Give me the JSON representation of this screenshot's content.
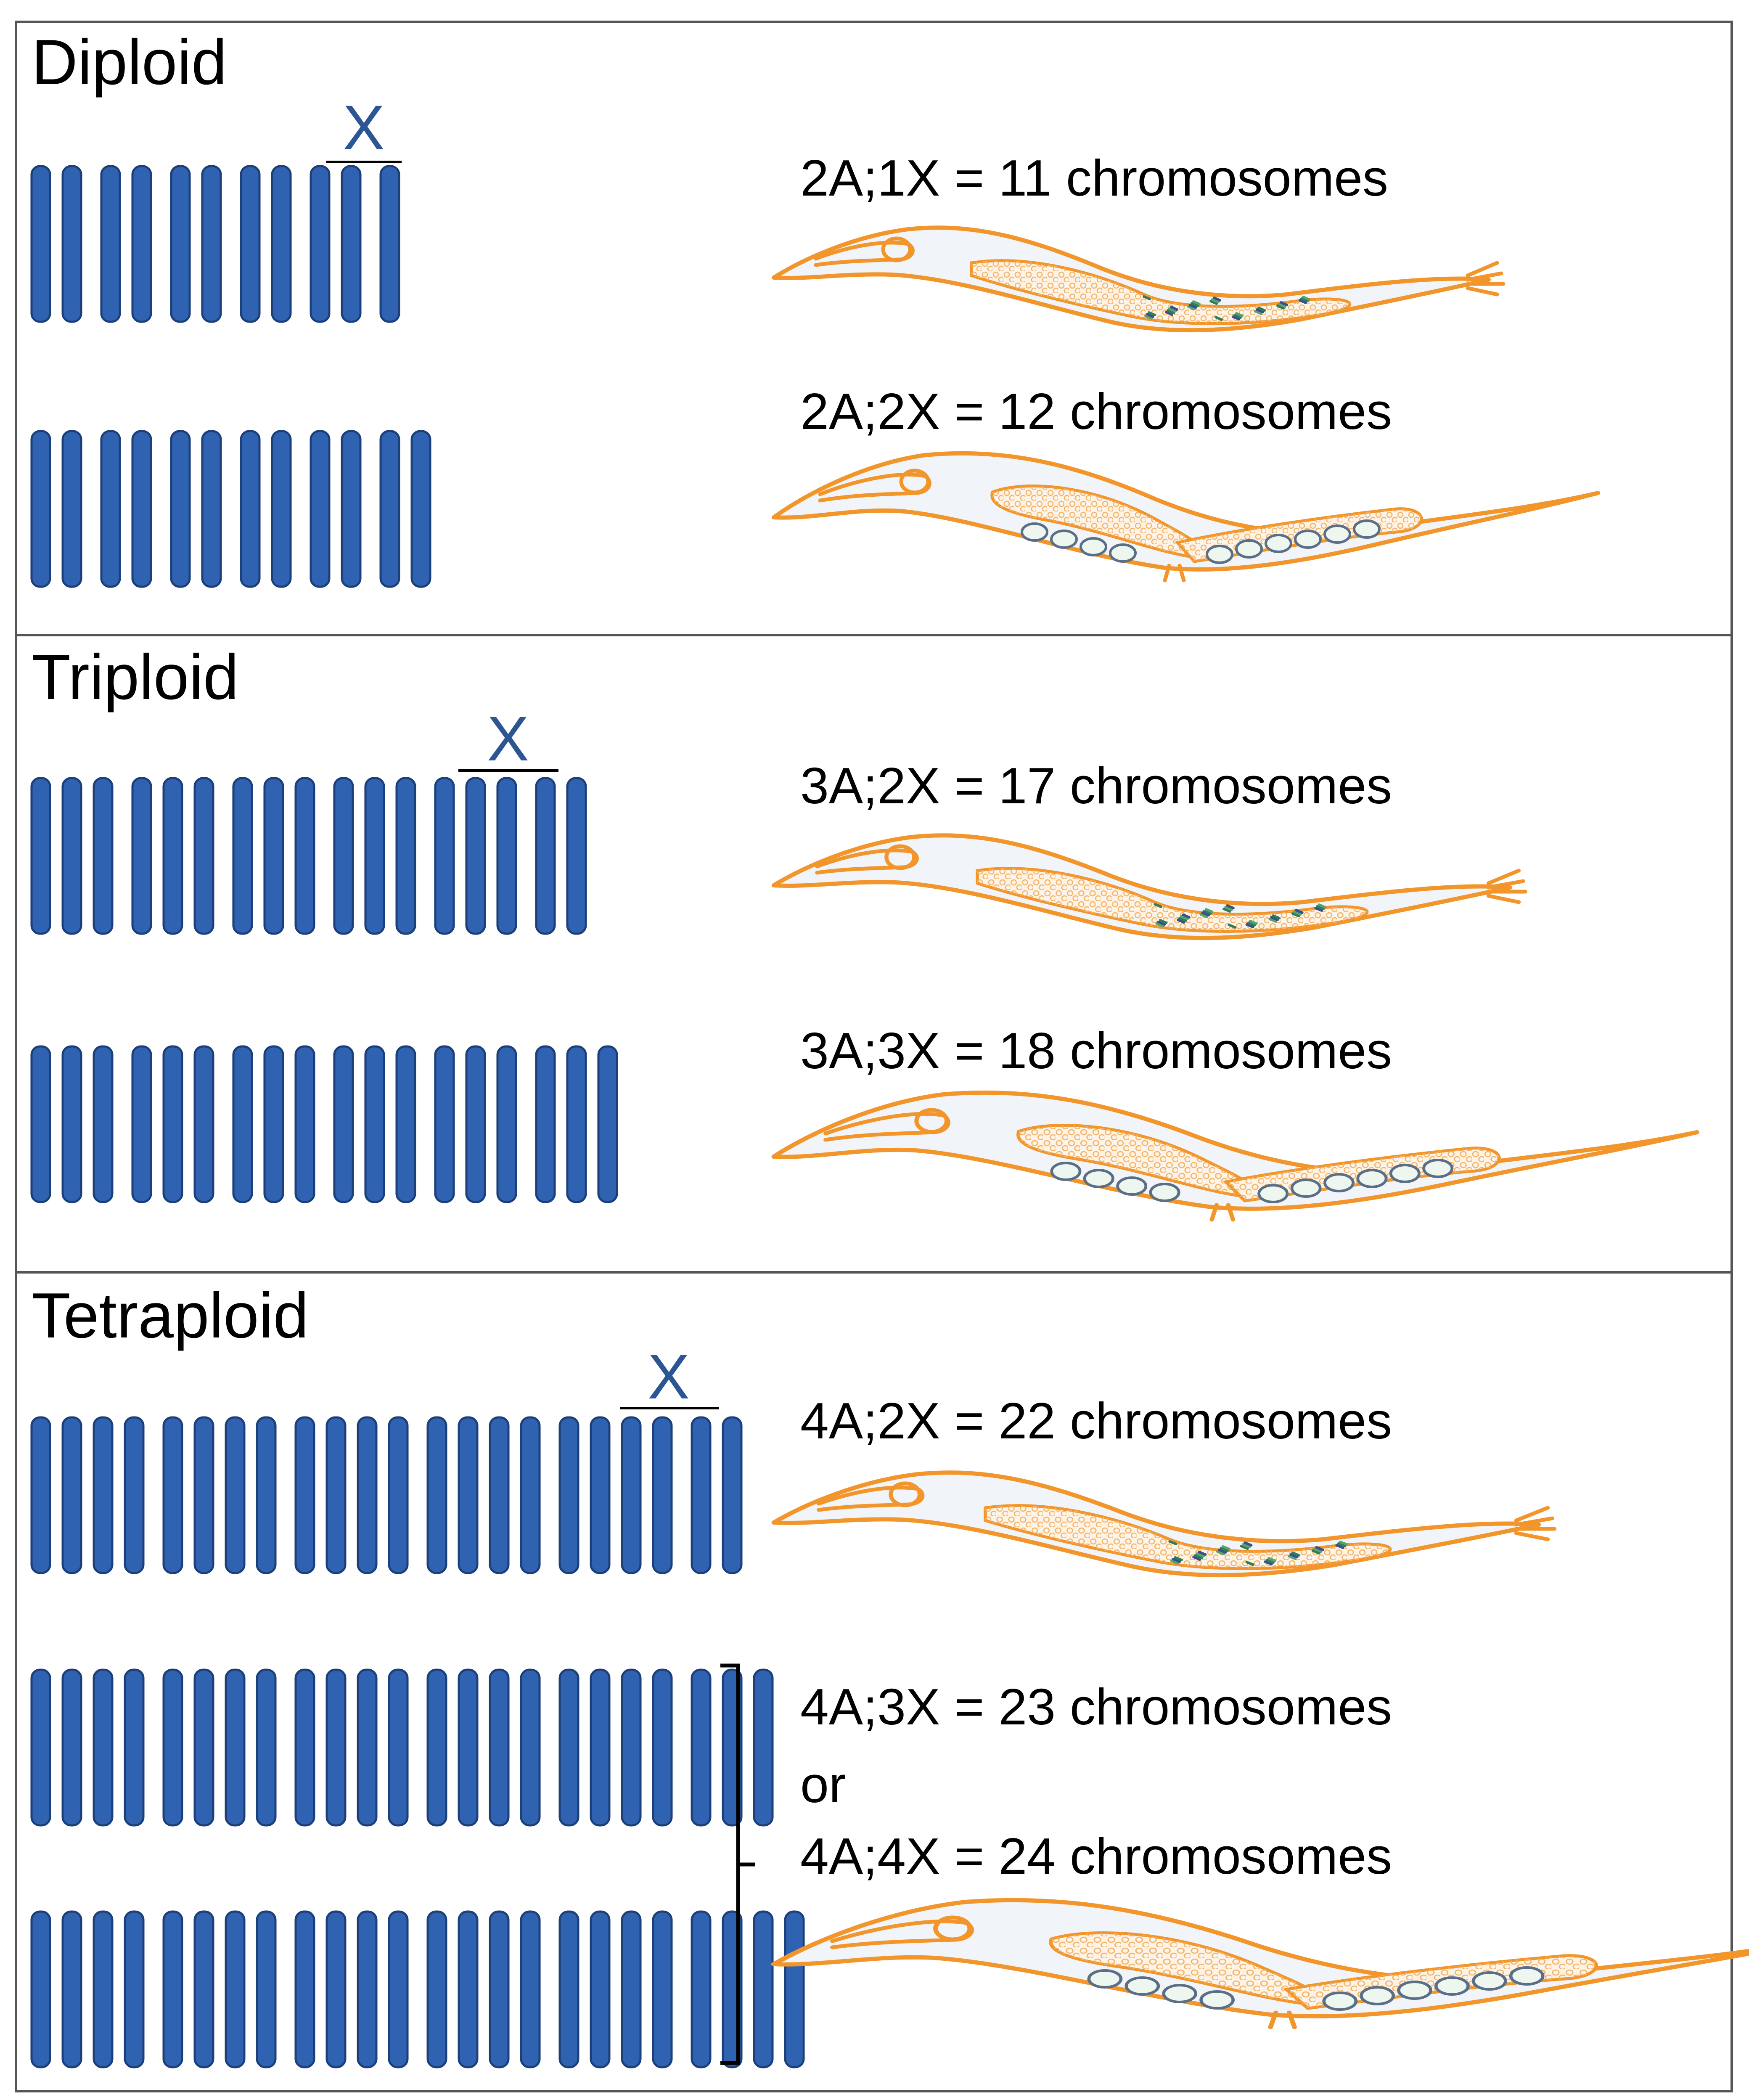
{
  "panels": [
    {
      "title": "Diploid",
      "x_label": "X",
      "rows": [
        {
          "caption": "2A;1X = 11 chromosomes",
          "worm": "male",
          "groups": [
            2,
            2,
            2,
            2,
            2,
            1
          ]
        },
        {
          "caption": "2A;2X = 12 chromosomes",
          "worm": "hermaphrodite",
          "groups": [
            2,
            2,
            2,
            2,
            2,
            2
          ]
        }
      ]
    },
    {
      "title": "Triploid",
      "x_label": "X",
      "rows": [
        {
          "caption": "3A;2X = 17 chromosomes",
          "worm": "male",
          "groups": [
            3,
            3,
            3,
            3,
            3,
            2
          ]
        },
        {
          "caption": "3A;3X = 18 chromosomes",
          "worm": "hermaphrodite",
          "groups": [
            3,
            3,
            3,
            3,
            3,
            3
          ]
        }
      ]
    },
    {
      "title": "Tetraploid",
      "x_label": "X",
      "rows": [
        {
          "caption": "4A;2X = 22 chromosomes",
          "worm": "male",
          "groups": [
            4,
            4,
            4,
            4,
            4,
            2
          ]
        },
        {
          "caption_lines": [
            "4A;3X = 23 chromosomes",
            "or",
            "4A;4X = 24 chromosomes"
          ],
          "worm": "hermaphrodite",
          "groups": [
            4,
            4,
            4,
            4,
            4,
            3
          ]
        },
        {
          "groups": [
            4,
            4,
            4,
            4,
            4,
            4
          ]
        }
      ]
    }
  ],
  "colors": {
    "chromosome_fill": "#2f63b2",
    "chromosome_stroke": "#1c3f7a",
    "x_label": "#2b5593",
    "worm_outline": "#f2962c",
    "worm_fill": "#f1f4f9",
    "border": "#555555"
  }
}
